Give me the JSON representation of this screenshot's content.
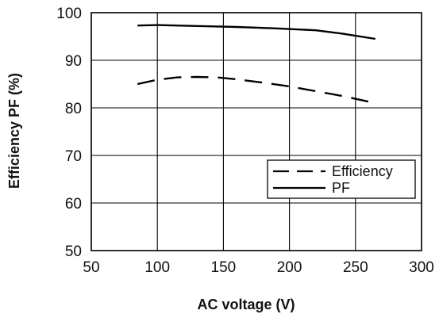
{
  "chart_data": {
    "type": "line",
    "xlabel": "AC voltage (V)",
    "ylabel": "Efficiency PF (%)",
    "xlim": [
      50,
      300
    ],
    "ylim": [
      50,
      100
    ],
    "x_ticks": [
      "50",
      "100",
      "150",
      "200",
      "250",
      "300"
    ],
    "y_ticks": [
      "50",
      "60",
      "70",
      "80",
      "90",
      "100"
    ],
    "grid": true,
    "legend_position": "lower-right",
    "series": [
      {
        "name": "Efficiency",
        "style": "dashed",
        "color": "#000000",
        "x": [
          85,
          100,
          115,
          130,
          145,
          160,
          180,
          200,
          220,
          240,
          265
        ],
        "y": [
          85.0,
          85.9,
          86.4,
          86.5,
          86.4,
          86.0,
          85.3,
          84.5,
          83.5,
          82.5,
          81.0
        ]
      },
      {
        "name": "PF",
        "style": "solid",
        "color": "#000000",
        "x": [
          85,
          100,
          130,
          160,
          190,
          220,
          240,
          265
        ],
        "y": [
          97.3,
          97.4,
          97.2,
          97.0,
          96.7,
          96.3,
          95.6,
          94.5
        ]
      }
    ]
  }
}
